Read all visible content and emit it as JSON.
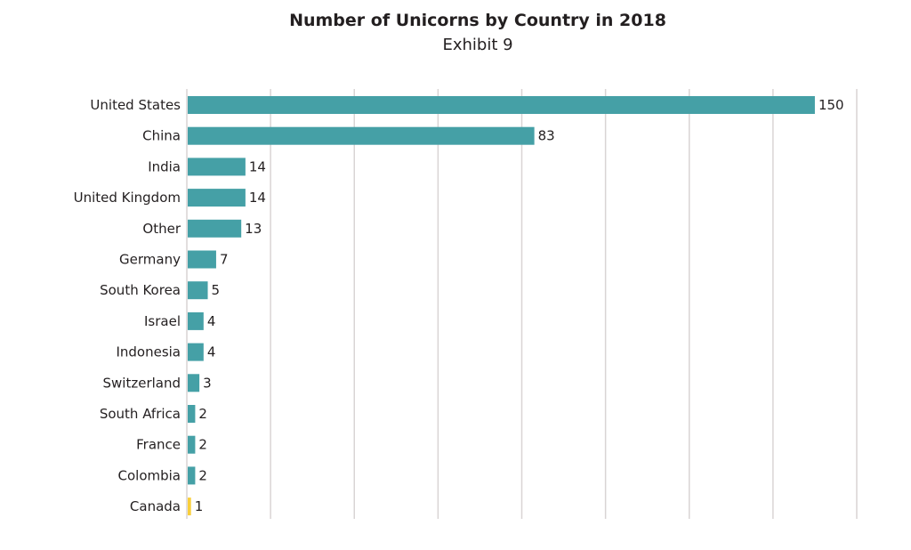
{
  "chart_data": {
    "type": "bar",
    "orientation": "horizontal",
    "title": "Number of Unicorns by Country in 2018",
    "subtitle": "Exhibit 9",
    "xlabel": "",
    "ylabel": "",
    "xlim": [
      0,
      160
    ],
    "grid_step": 20,
    "grid": true,
    "x_tick_labels_shown": false,
    "categories": [
      "United States",
      "China",
      "India",
      "United Kingdom",
      "Other",
      "Germany",
      "South Korea",
      "Israel",
      "Indonesia",
      "Switzerland",
      "South Africa",
      "France",
      "Colombia",
      "Canada"
    ],
    "values": [
      150,
      83,
      14,
      14,
      13,
      7,
      5,
      4,
      4,
      3,
      2,
      2,
      2,
      1
    ],
    "colors": {
      "default": "#45a0a6",
      "highlight": "#f9cf3b",
      "grid": "#d9d4d4"
    },
    "highlighted_category": "Canada"
  }
}
